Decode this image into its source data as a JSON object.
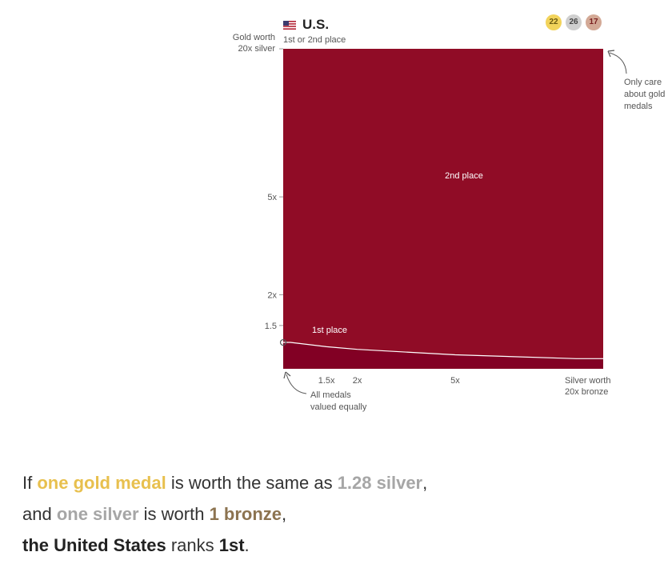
{
  "header": {
    "country": "U.S.",
    "subtitle": "1st or 2nd place",
    "medals": {
      "gold": "22",
      "silver": "26",
      "bronze": "17"
    }
  },
  "colors": {
    "first_place": "#820024",
    "second_place": "#900c26",
    "gold": "#e8c04e",
    "silver": "#a6a6a6",
    "bronze": "#8c7350"
  },
  "chart_data": {
    "type": "area",
    "x_scale": "log",
    "y_scale": "log",
    "xlim": [
      1,
      20
    ],
    "ylim": [
      1,
      20
    ],
    "x_ticks": [
      {
        "value": 1.5,
        "label": "1.5x"
      },
      {
        "value": 2,
        "label": "2x"
      },
      {
        "value": 5,
        "label": "5x"
      },
      {
        "value": 20,
        "label": "Silver worth"
      }
    ],
    "x_tick_sublabel": "20x bronze",
    "y_ticks": [
      {
        "value": 1.5,
        "label": "1.5"
      },
      {
        "value": 2,
        "label": "2x"
      },
      {
        "value": 5,
        "label": "5x"
      },
      {
        "value": 20,
        "label": "Gold worth"
      }
    ],
    "y_tick_sublabel": "20x silver",
    "regions": [
      {
        "label": "1st place",
        "color": "#820024"
      },
      {
        "label": "2nd place",
        "color": "#900c26"
      }
    ],
    "boundary": {
      "x": [
        1,
        1.07,
        1.5,
        2,
        5,
        15.5,
        20
      ],
      "y": [
        1.28,
        1.28,
        1.23,
        1.2,
        1.14,
        1.1,
        1.1
      ]
    },
    "annotations": {
      "top_right": [
        "Only care",
        "about gold",
        "medals"
      ],
      "bottom_left": [
        "All medals",
        "valued equally"
      ]
    },
    "current_point": {
      "x": 1,
      "y": 1.28
    }
  },
  "summary": {
    "line1_pre": "If ",
    "line1_gold": "one gold medal",
    "line1_mid": " is worth the same as ",
    "line1_silver": "1.28 silver",
    "line1_post": ",",
    "line2_pre": "and ",
    "line2_silver": "one silver",
    "line2_mid": " is worth ",
    "line2_bronze": "1 bronze",
    "line2_post": ",",
    "line3_country": "the United States",
    "line3_mid": " ranks ",
    "line3_rank": "1st",
    "line3_post": "."
  }
}
